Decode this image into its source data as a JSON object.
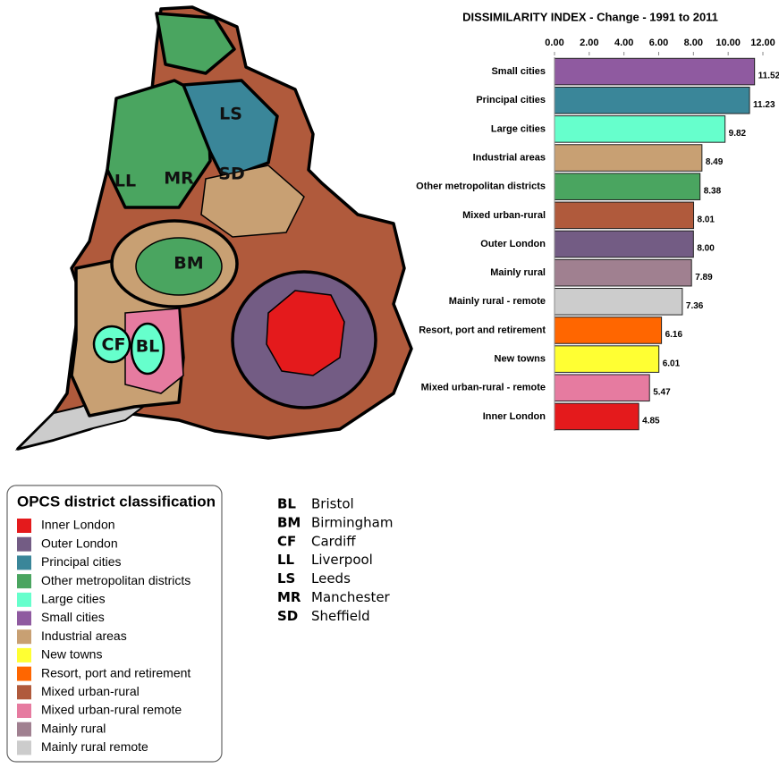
{
  "chart_data": {
    "type": "bar",
    "orientation": "horizontal",
    "title": "DISSIMILARITY INDEX - Change - 1991 to 2011",
    "categories": [
      "Small cities",
      "Principal cities",
      "Large cities",
      "Industrial areas",
      "Other metropolitan districts",
      "Mixed urban-rural",
      "Outer London",
      "Mainly rural",
      "Mainly rural - remote",
      "Resort, port and retirement",
      "New towns",
      "Mixed urban-rural - remote",
      "Inner London"
    ],
    "values": [
      11.52,
      11.23,
      9.82,
      8.49,
      8.38,
      8.01,
      8.0,
      7.89,
      7.36,
      6.16,
      6.01,
      5.47,
      4.85
    ],
    "value_labels": [
      "11.52",
      "11.23",
      "9.82",
      "8.49",
      "8.38",
      "8.01",
      "8.00",
      "7.89",
      "7.36",
      "6.16",
      "6.01",
      "5.47",
      "4.85"
    ],
    "colors": [
      "#8f5aa0",
      "#3a8699",
      "#66ffcc",
      "#c8a073",
      "#4aa560",
      "#b05a3c",
      "#735c84",
      "#a08090",
      "#cccccc",
      "#ff6600",
      "#ffff33",
      "#e67ba0",
      "#e41a1c"
    ],
    "xlim": [
      0,
      12
    ],
    "xticks": [
      {
        "value": 0,
        "label": "0.00"
      },
      {
        "value": 2,
        "label": "2.00"
      },
      {
        "value": 4,
        "label": "4.00"
      },
      {
        "value": 6,
        "label": "6.00"
      },
      {
        "value": 8,
        "label": "8.00"
      },
      {
        "value": 10,
        "label": "10.00"
      },
      {
        "value": 12,
        "label": "12.00"
      }
    ]
  },
  "map": {
    "labels": [
      "LS",
      "LL",
      "MR",
      "SD",
      "BM",
      "CF",
      "BL"
    ]
  },
  "legend": {
    "title": "OPCS district classification",
    "entries": [
      {
        "label": "Inner London",
        "color": "#e41a1c"
      },
      {
        "label": "Outer London",
        "color": "#735c84"
      },
      {
        "label": "Principal cities",
        "color": "#3a8699"
      },
      {
        "label": "Other metropolitan districts",
        "color": "#4aa560"
      },
      {
        "label": "Large cities",
        "color": "#66ffcc"
      },
      {
        "label": "Small cities",
        "color": "#8f5aa0"
      },
      {
        "label": "Industrial areas",
        "color": "#c8a073"
      },
      {
        "label": "New towns",
        "color": "#ffff33"
      },
      {
        "label": "Resort, port and retirement",
        "color": "#ff6600"
      },
      {
        "label": "Mixed urban-rural",
        "color": "#b05a3c"
      },
      {
        "label": "Mixed urban-rural remote",
        "color": "#e67ba0"
      },
      {
        "label": "Mainly rural",
        "color": "#a08090"
      },
      {
        "label": "Mainly rural remote",
        "color": "#cccccc"
      }
    ]
  },
  "abbreviations": [
    [
      "BL",
      "Bristol"
    ],
    [
      "BM",
      "Birmingham"
    ],
    [
      "CF",
      "Cardiff"
    ],
    [
      "LL",
      "Liverpool"
    ],
    [
      "LS",
      "Leeds"
    ],
    [
      "MR",
      "Manchester"
    ],
    [
      "SD",
      "Sheffield"
    ]
  ]
}
